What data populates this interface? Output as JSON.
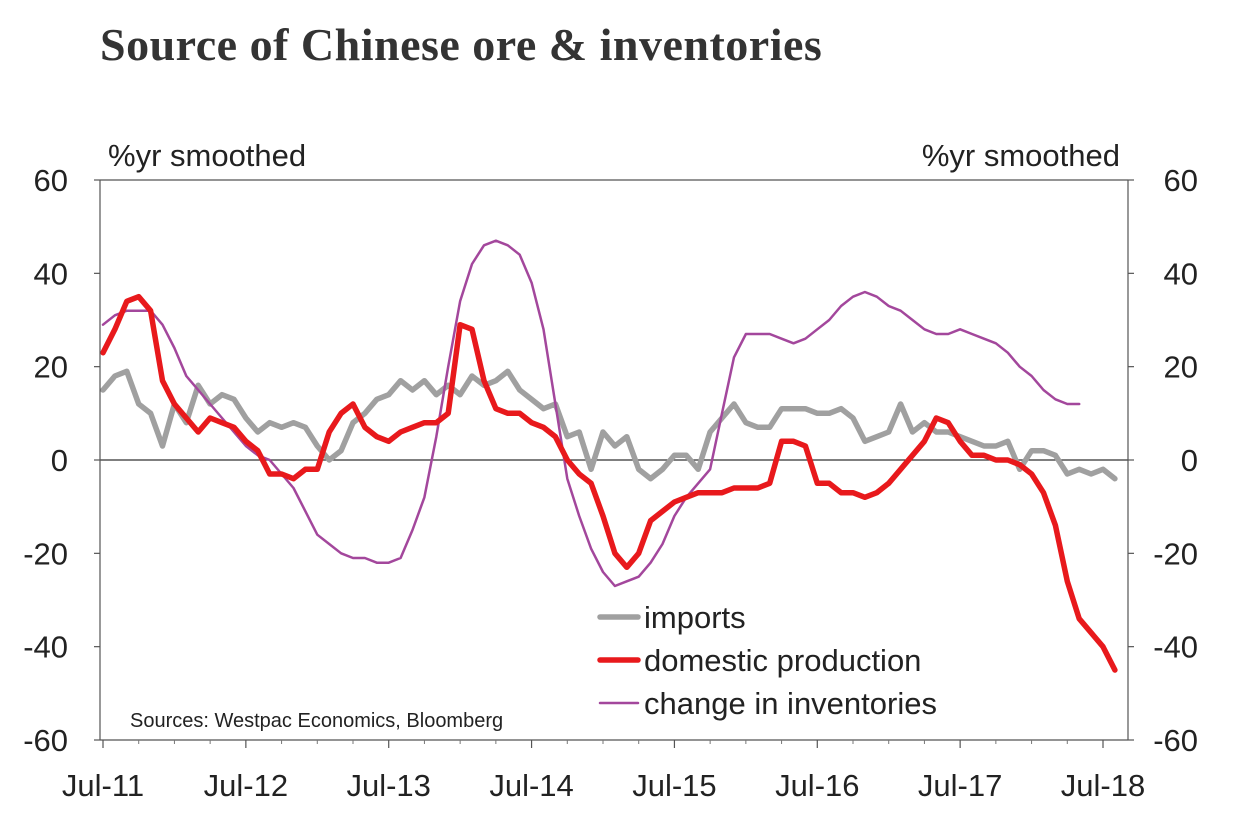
{
  "chart_data": {
    "type": "line",
    "title": "Source of Chinese ore & inventories",
    "ylabel_left": "%yr smoothed",
    "ylabel_right": "%yr smoothed",
    "ylim": [
      -60,
      60
    ],
    "yticks": [
      60,
      40,
      20,
      0,
      -20,
      -40,
      -60
    ],
    "ytick_labels": [
      "60",
      "40",
      "20",
      "0",
      "-20",
      "-40",
      "-60"
    ],
    "xlim": [
      0,
      85
    ],
    "xticks": [
      0,
      12,
      24,
      36,
      48,
      60,
      72,
      84
    ],
    "xtick_labels": [
      "Jul-11",
      "Jul-12",
      "Jul-13",
      "Jul-14",
      "Jul-15",
      "Jul-16",
      "Jul-17",
      "Jul-18"
    ],
    "source": "Sources: Westpac Economics,  Bloomberg",
    "series": [
      {
        "name": "imports",
        "color": "#a0a0a0",
        "values": [
          15,
          18,
          19,
          12,
          10,
          3,
          12,
          8,
          16,
          12,
          14,
          13,
          9,
          6,
          8,
          7,
          8,
          7,
          3,
          0,
          2,
          8,
          10,
          13,
          14,
          17,
          15,
          17,
          14,
          16,
          14,
          18,
          16,
          17,
          19,
          15,
          13,
          11,
          12,
          5,
          6,
          -2,
          6,
          3,
          5,
          -2,
          -4,
          -2,
          1,
          1,
          -2,
          6,
          9,
          12,
          8,
          7,
          7,
          11,
          11,
          11,
          10,
          10,
          11,
          9,
          4,
          5,
          6,
          12,
          6,
          8,
          6,
          6,
          5,
          4,
          3,
          3,
          4,
          -2,
          2,
          2,
          1,
          -3,
          -2,
          -3,
          -2,
          -4
        ]
      },
      {
        "name": "domestic production",
        "color": "#e8191c",
        "values": [
          23,
          28,
          34,
          35,
          32,
          17,
          12,
          9,
          6,
          9,
          8,
          7,
          4,
          2,
          -3,
          -3,
          -4,
          -2,
          -2,
          6,
          10,
          12,
          7,
          5,
          4,
          6,
          7,
          8,
          8,
          10,
          29,
          28,
          17,
          11,
          10,
          10,
          8,
          7,
          5,
          0,
          -3,
          -5,
          -12,
          -20,
          -23,
          -20,
          -13,
          -11,
          -9,
          -8,
          -7,
          -7,
          -7,
          -6,
          -6,
          -6,
          -5,
          4,
          4,
          3,
          -5,
          -5,
          -7,
          -7,
          -8,
          -7,
          -5,
          -2,
          1,
          4,
          9,
          8,
          4,
          1,
          1,
          0,
          0,
          -1,
          -3,
          -7,
          -14,
          -26,
          -34,
          -37,
          -40,
          -45
        ]
      },
      {
        "name": "change in inventories",
        "color": "#a3479c",
        "values": [
          29,
          31,
          32,
          32,
          32,
          29,
          24,
          18,
          15,
          12,
          9,
          6,
          3,
          1,
          0,
          -3,
          -6,
          -11,
          -16,
          -18,
          -20,
          -21,
          -21,
          -22,
          -22,
          -21,
          -15,
          -8,
          5,
          20,
          34,
          42,
          46,
          47,
          46,
          44,
          38,
          28,
          12,
          -4,
          -12,
          -19,
          -24,
          -27,
          -26,
          -25,
          -22,
          -18,
          -12,
          -8,
          -5,
          -2,
          10,
          22,
          27,
          27,
          27,
          26,
          25,
          26,
          28,
          30,
          33,
          35,
          36,
          35,
          33,
          32,
          30,
          28,
          27,
          27,
          28,
          27,
          26,
          25,
          23,
          20,
          18,
          15,
          13,
          12,
          12
        ]
      }
    ],
    "legend": [
      "imports",
      "domestic production",
      "change in inventories"
    ]
  }
}
